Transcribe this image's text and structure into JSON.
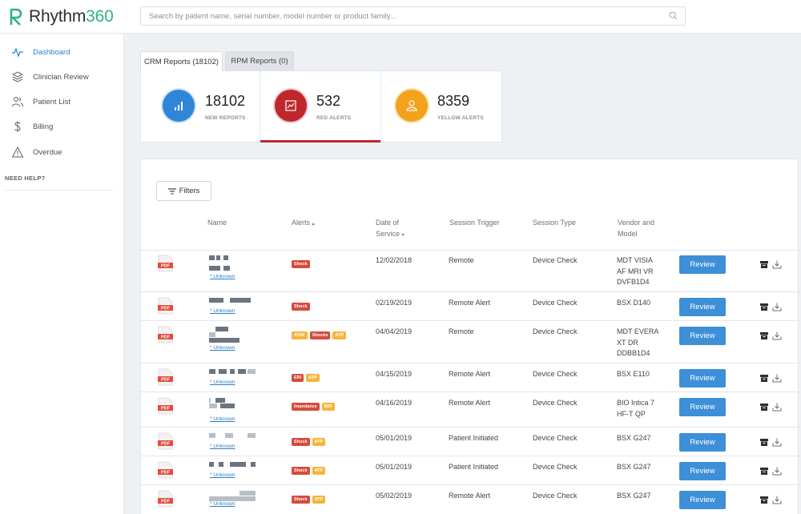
{
  "app": {
    "logo_word": "Rhythm",
    "logo_num": "360",
    "colors": {
      "brand": "#2fb47c",
      "accent": "#2a7fc4",
      "red": "#c0272d",
      "button": "#3d8fd8"
    }
  },
  "search": {
    "placeholder": "Search by patient name, serial number, model number or product family...",
    "value": ""
  },
  "sidebar": {
    "items": [
      {
        "label": "Dashboard",
        "icon": "pulse-icon",
        "active": true
      },
      {
        "label": "Clinician Review",
        "icon": "layers-icon",
        "active": false
      },
      {
        "label": "Patient List",
        "icon": "users-icon",
        "active": false
      },
      {
        "label": "Billing",
        "icon": "dollar-icon",
        "active": false
      },
      {
        "label": "Overdue",
        "icon": "warning-icon",
        "active": false
      }
    ],
    "help": "NEED HELP?"
  },
  "tabs": [
    {
      "label": "CRM Reports (18102)",
      "active": true
    },
    {
      "label": "RPM Reports (0)",
      "active": false
    }
  ],
  "stats": [
    {
      "value": "18102",
      "label": "NEW REPORTS",
      "color": "#2f86d9",
      "icon": "signal-bars-icon"
    },
    {
      "value": "532",
      "label": "RED ALERTS",
      "color": "#c0272d",
      "icon": "chart-frame-icon"
    },
    {
      "value": "8359",
      "label": "YELLOW ALERTS",
      "color": "#f3a21b",
      "icon": "person-icon"
    }
  ],
  "table": {
    "filters_label": "Filters",
    "headers": {
      "name": "Name",
      "alerts": "Alerts",
      "date_1": "Date of",
      "date_2": "Service",
      "trigger": "Session Trigger",
      "type": "Session Type",
      "vendor_1": "Vendor and",
      "vendor_2": "Model"
    },
    "review_label": "Review",
    "unknown_label": "* Unknown",
    "rows": [
      {
        "alerts": [
          [
            "Shock",
            "red"
          ]
        ],
        "date": "12/02/2018",
        "trigger": "Remote",
        "type": "Device Check",
        "model": [
          "MDT VISIA",
          "AF MRI VR",
          "DVFB1D4"
        ]
      },
      {
        "alerts": [
          [
            "Shock",
            "red"
          ]
        ],
        "date": "02/19/2019",
        "trigger": "Remote Alert",
        "type": "Device Check",
        "model": [
          "BSX D140"
        ]
      },
      {
        "alerts": [
          [
            "ATAF",
            "yellow"
          ],
          [
            "Shocks",
            "red"
          ],
          [
            "ATP",
            "yellow"
          ]
        ],
        "date": "04/04/2019",
        "trigger": "Remote",
        "type": "Device Check",
        "model": [
          "MDT EVERA",
          "XT DR",
          "DDBB1D4"
        ]
      },
      {
        "alerts": [
          [
            "ERI",
            "red"
          ],
          [
            "ATP",
            "yellow"
          ]
        ],
        "date": "04/15/2019",
        "trigger": "Remote Alert",
        "type": "Device Check",
        "model": [
          "BSX E110"
        ]
      },
      {
        "alerts": [
          [
            "Impedance",
            "red"
          ],
          [
            "BIO",
            "yellow"
          ]
        ],
        "date": "04/16/2019",
        "trigger": "Remote Alert",
        "type": "Device Check",
        "model": [
          "BIO Intica 7",
          "HF-T QP"
        ]
      },
      {
        "alerts": [
          [
            "Shock",
            "red"
          ],
          [
            "ATP",
            "yellow"
          ]
        ],
        "date": "05/01/2019",
        "trigger": "Patient Initiated",
        "type": "Device Check",
        "model": [
          "BSX G247"
        ]
      },
      {
        "alerts": [
          [
            "Shock",
            "red"
          ],
          [
            "ATP",
            "yellow"
          ]
        ],
        "date": "05/01/2019",
        "trigger": "Patient Initiated",
        "type": "Device Check",
        "model": [
          "BSX G247"
        ]
      },
      {
        "alerts": [
          [
            "Shock",
            "red"
          ],
          [
            "ATP",
            "yellow"
          ]
        ],
        "date": "05/02/2019",
        "trigger": "Remote Alert",
        "type": "Device Check",
        "model": [
          "BSX G247"
        ]
      }
    ]
  }
}
